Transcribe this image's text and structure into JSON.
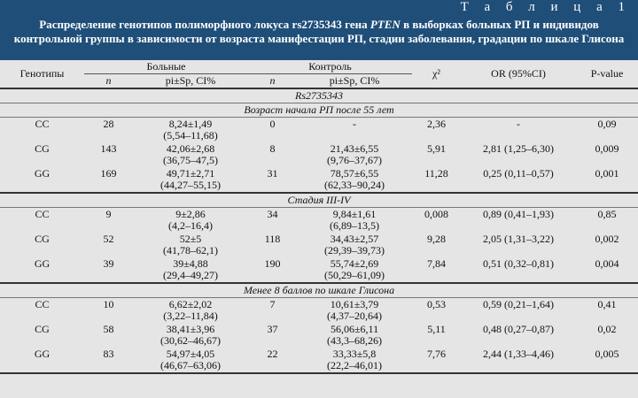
{
  "table_label": "Т а б л и ц а  1",
  "caption": {
    "part1": "Распределение генотипов полиморфного локуса rs2735343 гена ",
    "gene": "PTEN",
    "part2": " в выборках больных РП и индивидов контрольной группы в зависимости от возраста манифестации РП, стадии заболевания, градации по шкале Глисона"
  },
  "headers": {
    "genotypes": "Генотипы",
    "patients": "Больные",
    "control": "Контроль",
    "n": "n",
    "pi": "pi±Sp, CI%",
    "chi2": "χ²",
    "or": "OR (95%CI)",
    "pvalue": "P-value"
  },
  "locus": "Rs2735343",
  "sections": [
    {
      "title": "Возраст начала РП после 55 лет",
      "rows": [
        {
          "g": "CC",
          "n1": "28",
          "p1a": "8,24±1,49",
          "p1b": "(5,54–11,68)",
          "n2": "0",
          "p2a": "-",
          "p2b": "",
          "chi": "2,36",
          "or": "-",
          "p": "0,09"
        },
        {
          "g": "CG",
          "n1": "143",
          "p1a": "42,06±2,68",
          "p1b": "(36,75–47,5)",
          "n2": "8",
          "p2a": "21,43±6,55",
          "p2b": "(9,76–37,67)",
          "chi": "5,91",
          "or": "2,81 (1,25–6,30)",
          "p": "0,009"
        },
        {
          "g": "GG",
          "n1": "169",
          "p1a": "49,71±2,71",
          "p1b": "(44,27–55,15)",
          "n2": "31",
          "p2a": "78,57±6,55",
          "p2b": "(62,33–90,24)",
          "chi": "11,28",
          "or": "0,25 (0,11–0,57)",
          "p": "0,001"
        }
      ]
    },
    {
      "title": "Стадия III-IV",
      "rows": [
        {
          "g": "CC",
          "n1": "9",
          "p1a": "9±2,86",
          "p1b": "(4,2–16,4)",
          "n2": "34",
          "p2a": "9,84±1,61",
          "p2b": "(6,89–13,5)",
          "chi": "0,008",
          "or": "0,89 (0,41–1,93)",
          "p": "0,85"
        },
        {
          "g": "CG",
          "n1": "52",
          "p1a": "52±5",
          "p1b": "(41,78–62,1)",
          "n2": "118",
          "p2a": "34,43±2,57",
          "p2b": "(29,39–39,73)",
          "chi": "9,28",
          "or": "2,05 (1,31–3,22)",
          "p": "0,002"
        },
        {
          "g": "GG",
          "n1": "39",
          "p1a": "39±4,88",
          "p1b": "(29,4–49,27)",
          "n2": "190",
          "p2a": "55,74±2,69",
          "p2b": "(50,29–61,09)",
          "chi": "7,84",
          "or": "0,51 (0,32–0,81)",
          "p": "0,004"
        }
      ]
    },
    {
      "title": "Менее 8 баллов по шкале Глисона",
      "rows": [
        {
          "g": "CC",
          "n1": "10",
          "p1a": "6,62±2,02",
          "p1b": "(3,22–11,84)",
          "n2": "7",
          "p2a": "10,61±3,79",
          "p2b": "(4,37–20,64)",
          "chi": "0,53",
          "or": "0,59 (0,21–1,64)",
          "p": "0,41"
        },
        {
          "g": "CG",
          "n1": "58",
          "p1a": "38,41±3,96",
          "p1b": "(30,62–46,67)",
          "n2": "37",
          "p2a": "56,06±6,11",
          "p2b": "(43,3–68,26)",
          "chi": "5,11",
          "or": "0,48 (0,27–0,87)",
          "p": "0,02"
        },
        {
          "g": "GG",
          "n1": "83",
          "p1a": "54,97±4,05",
          "p1b": "(46,67–63,06)",
          "n2": "22",
          "p2a": "33,33±5,8",
          "p2b": "(22,2–46,01)",
          "chi": "7,76",
          "or": "2,44 (1,33–4,46)",
          "p": "0,005"
        }
      ]
    }
  ]
}
